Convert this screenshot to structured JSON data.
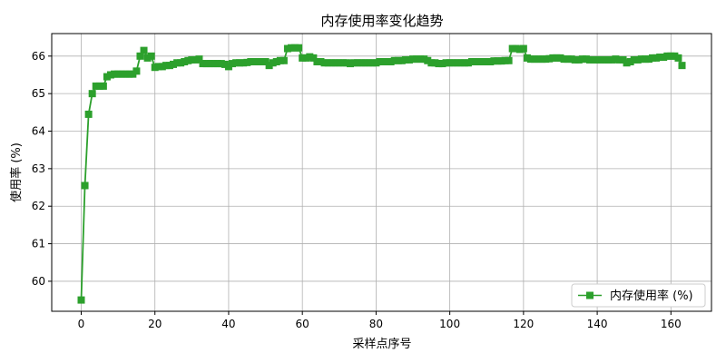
{
  "chart_data": {
    "type": "line",
    "title": "内存使用率变化趋势",
    "xlabel": "采样点序号",
    "ylabel": "使用率 (%)",
    "xlim": [
      -8,
      171
    ],
    "ylim": [
      59.2,
      66.6
    ],
    "xticks": [
      0,
      20,
      40,
      60,
      80,
      100,
      120,
      140,
      160
    ],
    "yticks": [
      60,
      61,
      62,
      63,
      64,
      65,
      66
    ],
    "grid": true,
    "legend_position": "lower-right",
    "series": [
      {
        "name": "内存使用率 (%)",
        "color": "#2ca02c",
        "marker": "square",
        "x": [
          0,
          1,
          2,
          3,
          4,
          5,
          6,
          7,
          8,
          9,
          10,
          11,
          12,
          13,
          14,
          15,
          16,
          17,
          18,
          19,
          20,
          21,
          22,
          23,
          24,
          25,
          26,
          27,
          28,
          29,
          30,
          31,
          32,
          33,
          34,
          35,
          36,
          37,
          38,
          39,
          40,
          41,
          42,
          43,
          44,
          45,
          46,
          47,
          48,
          49,
          50,
          51,
          52,
          53,
          54,
          55,
          56,
          57,
          58,
          59,
          60,
          61,
          62,
          63,
          64,
          65,
          66,
          67,
          68,
          69,
          70,
          71,
          72,
          73,
          74,
          75,
          76,
          77,
          78,
          79,
          80,
          81,
          82,
          83,
          84,
          85,
          86,
          87,
          88,
          89,
          90,
          91,
          92,
          93,
          94,
          95,
          96,
          97,
          98,
          99,
          100,
          101,
          102,
          103,
          104,
          105,
          106,
          107,
          108,
          109,
          110,
          111,
          112,
          113,
          114,
          115,
          116,
          117,
          118,
          119,
          120,
          121,
          122,
          123,
          124,
          125,
          126,
          127,
          128,
          129,
          130,
          131,
          132,
          133,
          134,
          135,
          136,
          137,
          138,
          139,
          140,
          141,
          142,
          143,
          144,
          145,
          146,
          147,
          148,
          149,
          150,
          151,
          152,
          153,
          154,
          155,
          156,
          157,
          158,
          159,
          160,
          161,
          162,
          163
        ],
        "y": [
          59.5,
          62.55,
          64.45,
          65.0,
          65.2,
          65.2,
          65.2,
          65.45,
          65.5,
          65.52,
          65.52,
          65.52,
          65.52,
          65.52,
          65.52,
          65.6,
          66.0,
          66.15,
          65.95,
          66.0,
          65.7,
          65.72,
          65.72,
          65.75,
          65.75,
          65.78,
          65.82,
          65.82,
          65.85,
          65.88,
          65.9,
          65.9,
          65.92,
          65.8,
          65.8,
          65.8,
          65.8,
          65.8,
          65.8,
          65.78,
          65.72,
          65.8,
          65.82,
          65.82,
          65.82,
          65.83,
          65.85,
          65.85,
          65.85,
          65.85,
          65.85,
          65.75,
          65.82,
          65.85,
          65.88,
          65.88,
          66.2,
          66.22,
          66.22,
          66.22,
          65.95,
          65.95,
          65.98,
          65.95,
          65.85,
          65.85,
          65.82,
          65.82,
          65.82,
          65.82,
          65.82,
          65.82,
          65.82,
          65.8,
          65.82,
          65.82,
          65.82,
          65.82,
          65.82,
          65.82,
          65.82,
          65.85,
          65.85,
          65.85,
          65.85,
          65.88,
          65.88,
          65.88,
          65.9,
          65.9,
          65.92,
          65.92,
          65.92,
          65.92,
          65.88,
          65.82,
          65.82,
          65.8,
          65.8,
          65.82,
          65.82,
          65.82,
          65.82,
          65.82,
          65.82,
          65.82,
          65.85,
          65.85,
          65.85,
          65.85,
          65.85,
          65.85,
          65.87,
          65.87,
          65.87,
          65.88,
          65.88,
          66.2,
          66.2,
          66.18,
          66.2,
          65.95,
          65.92,
          65.92,
          65.92,
          65.92,
          65.92,
          65.93,
          65.95,
          65.95,
          65.95,
          65.92,
          65.92,
          65.92,
          65.9,
          65.9,
          65.92,
          65.92,
          65.9,
          65.9,
          65.9,
          65.9,
          65.9,
          65.9,
          65.9,
          65.92,
          65.9,
          65.9,
          65.82,
          65.85,
          65.9,
          65.9,
          65.92,
          65.92,
          65.92,
          65.95,
          65.95,
          65.97,
          65.97,
          66.0,
          66.0,
          66.0,
          65.95,
          65.75
        ]
      }
    ]
  }
}
